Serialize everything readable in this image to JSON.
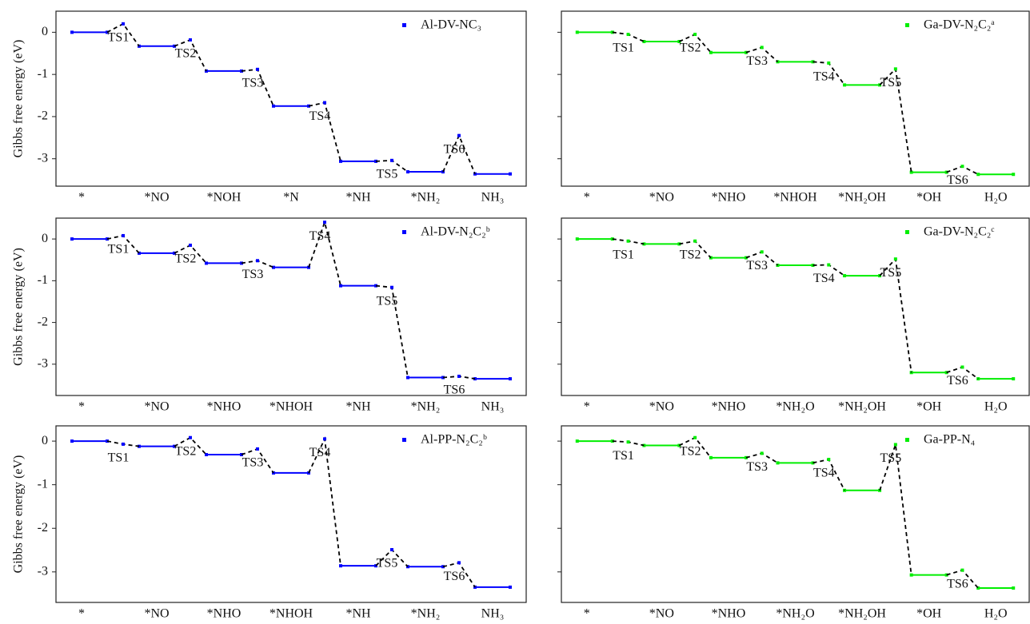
{
  "chart_data": [
    {
      "type": "energy",
      "name": "Al-DV-NC₃",
      "color": "#0000ff",
      "ylabel": "Gibbs free energy (eV)",
      "categories": [
        "*",
        "*NO",
        "*NOH",
        "*N",
        "*NH",
        "*NH₂",
        "NH₃"
      ],
      "values": [
        0,
        -0.33,
        -0.92,
        -1.75,
        -3.06,
        -3.31,
        -3.36
      ],
      "ts": [
        {
          "label": "TS1",
          "value": 0.2
        },
        {
          "label": "TS2",
          "value": -0.18
        },
        {
          "label": "TS3",
          "value": -0.88
        },
        {
          "label": "TS4",
          "value": -1.67
        },
        {
          "label": "TS5",
          "value": -3.04
        },
        {
          "label": "TS6",
          "value": -2.45
        }
      ],
      "ylim": [
        -3.65,
        0.5
      ],
      "yticks": [
        0,
        -1,
        -2,
        -3
      ]
    },
    {
      "type": "energy",
      "name": "Ga-DV-N₂C₂ᵃ",
      "color": "#00ee00",
      "categories": [
        "*",
        "*NO",
        "*NHO",
        "*NHOH",
        "*NH₂OH",
        "*OH",
        "H₂O"
      ],
      "values": [
        0,
        -0.22,
        -0.48,
        -0.7,
        -1.25,
        -3.32,
        -3.37
      ],
      "ts": [
        {
          "label": "TS1",
          "value": -0.05
        },
        {
          "label": "TS2",
          "value": -0.05
        },
        {
          "label": "TS3",
          "value": -0.36
        },
        {
          "label": "TS4",
          "value": -0.73
        },
        {
          "label": "TS5",
          "value": -0.87
        },
        {
          "label": "TS6",
          "value": -3.18
        }
      ],
      "ylim": [
        -3.65,
        0.5
      ],
      "yticks": [
        0,
        -1,
        -2,
        -3
      ]
    },
    {
      "type": "energy",
      "name": "Al-DV-N₂C₂ᵇ",
      "color": "#0000ff",
      "ylabel": "Gibbs free energy (eV)",
      "categories": [
        "*",
        "*NO",
        "*NHO",
        "*NHOH",
        "*NH",
        "*NH₂",
        "NH₃"
      ],
      "values": [
        0,
        -0.34,
        -0.58,
        -0.68,
        -1.12,
        -3.32,
        -3.35
      ],
      "ts": [
        {
          "label": "TS1",
          "value": 0.08
        },
        {
          "label": "TS2",
          "value": -0.15
        },
        {
          "label": "TS3",
          "value": -0.52
        },
        {
          "label": "TS4",
          "value": 0.4
        },
        {
          "label": "TS5",
          "value": -1.16
        },
        {
          "label": "TS6",
          "value": -3.29
        }
      ],
      "ylim": [
        -3.75,
        0.5
      ],
      "yticks": [
        0,
        -1,
        -2,
        -3
      ]
    },
    {
      "type": "energy",
      "name": "Ga-DV-N₂C₂ᶜ",
      "color": "#00ee00",
      "categories": [
        "*",
        "*NO",
        "*NHO",
        "*NH₂O",
        "*NH₂OH",
        "*OH",
        "H₂O"
      ],
      "values": [
        0,
        -0.12,
        -0.45,
        -0.63,
        -0.88,
        -3.2,
        -3.35
      ],
      "ts": [
        {
          "label": "TS1",
          "value": -0.05
        },
        {
          "label": "TS2",
          "value": -0.05
        },
        {
          "label": "TS3",
          "value": -0.31
        },
        {
          "label": "TS4",
          "value": -0.62
        },
        {
          "label": "TS5",
          "value": -0.48
        },
        {
          "label": "TS6",
          "value": -3.07
        }
      ],
      "ylim": [
        -3.75,
        0.5
      ],
      "yticks": [
        0,
        -1,
        -2,
        -3
      ]
    },
    {
      "type": "energy",
      "name": "Al-PP-N₂C₂ᵇ",
      "color": "#0000ff",
      "ylabel": "Gibbs free energy (eV)",
      "categories": [
        "*",
        "*NO",
        "*NHO",
        "*NHOH",
        "*NH",
        "*NH₂",
        "NH₃"
      ],
      "values": [
        0,
        -0.12,
        -0.31,
        -0.73,
        -2.86,
        -2.88,
        -3.35
      ],
      "ts": [
        {
          "label": "TS1",
          "value": -0.07
        },
        {
          "label": "TS2",
          "value": 0.08
        },
        {
          "label": "TS3",
          "value": -0.18
        },
        {
          "label": "TS4",
          "value": 0.05
        },
        {
          "label": "TS5",
          "value": -2.49
        },
        {
          "label": "TS6",
          "value": -2.79
        }
      ],
      "ylim": [
        -3.7,
        0.35
      ],
      "yticks": [
        0,
        -1,
        -2,
        -3
      ]
    },
    {
      "type": "energy",
      "name": "Ga-PP-N₄",
      "color": "#00ee00",
      "categories": [
        "*",
        "*NO",
        "*NHO",
        "*NH₂O",
        "*NH₂OH",
        "*OH",
        "H₂O"
      ],
      "values": [
        0,
        -0.1,
        -0.38,
        -0.5,
        -1.13,
        -3.07,
        -3.37
      ],
      "ts": [
        {
          "label": "TS1",
          "value": -0.02
        },
        {
          "label": "TS2",
          "value": 0.08
        },
        {
          "label": "TS3",
          "value": -0.28
        },
        {
          "label": "TS4",
          "value": -0.42
        },
        {
          "label": "TS5",
          "value": -0.08
        },
        {
          "label": "TS6",
          "value": -2.96
        }
      ],
      "ylim": [
        -3.7,
        0.35
      ],
      "yticks": [
        0,
        -1,
        -2,
        -3
      ]
    }
  ]
}
